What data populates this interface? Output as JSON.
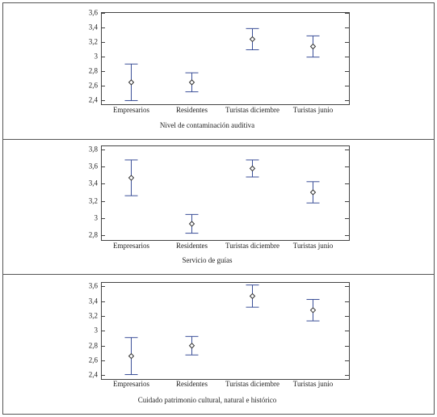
{
  "chart_data": [
    {
      "type": "errorbar",
      "xlabel": "Nivel de contaminación auditiva",
      "categories": [
        "Empresarios",
        "Residentes",
        "Turistas diciembre",
        "Turistas junio"
      ],
      "values": [
        2.65,
        2.65,
        3.24,
        3.14
      ],
      "errors": [
        0.25,
        0.13,
        0.145,
        0.145
      ],
      "color": "#3b4f98",
      "ylim": [
        2.35,
        3.61
      ],
      "yticks": [
        {
          "value": 2.4,
          "label": "2,4"
        },
        {
          "value": 2.6,
          "label": "2,6"
        },
        {
          "value": 2.8,
          "label": "2,8"
        },
        3,
        {
          "value": 3.2,
          "label": "3,2"
        },
        {
          "value": 3.4,
          "label": "3,4"
        },
        {
          "value": 3.6,
          "label": "3,6"
        }
      ]
    },
    {
      "type": "errorbar",
      "xlabel": "Servicio de guías",
      "categories": [
        "Empresarios",
        "Residentes",
        "Turistas diciembre",
        "Turistas junio"
      ],
      "values": [
        3.47,
        2.93,
        3.58,
        3.3
      ],
      "errors": [
        0.21,
        0.11,
        0.1,
        0.125
      ],
      "color": "#3b4f98",
      "ylim": [
        2.74,
        3.85
      ],
      "yticks": [
        {
          "value": 2.8,
          "label": "2,8"
        },
        3,
        {
          "value": 3.2,
          "label": "3,2"
        },
        {
          "value": 3.4,
          "label": "3,4"
        },
        {
          "value": 3.6,
          "label": "3,6"
        },
        {
          "value": 3.8,
          "label": "3,8"
        }
      ]
    },
    {
      "type": "errorbar",
      "xlabel": "Cuidado patrimonio cultural, natural e histórico",
      "categories": [
        "Empresarios",
        "Residentes",
        "Turistas diciembre",
        "Turistas junio"
      ],
      "values": [
        2.66,
        2.8,
        3.47,
        3.28
      ],
      "errors": [
        0.25,
        0.125,
        0.15,
        0.145
      ],
      "color": "#3b4f98",
      "ylim": [
        2.35,
        3.66
      ],
      "yticks": [
        {
          "value": 2.4,
          "label": "2,4"
        },
        {
          "value": 2.6,
          "label": "2,6"
        },
        {
          "value": 2.8,
          "label": "2,8"
        },
        3,
        {
          "value": 3.2,
          "label": "3,2"
        },
        {
          "value": 3.4,
          "label": "3,4"
        },
        {
          "value": 3.6,
          "label": "3,6"
        }
      ]
    }
  ]
}
